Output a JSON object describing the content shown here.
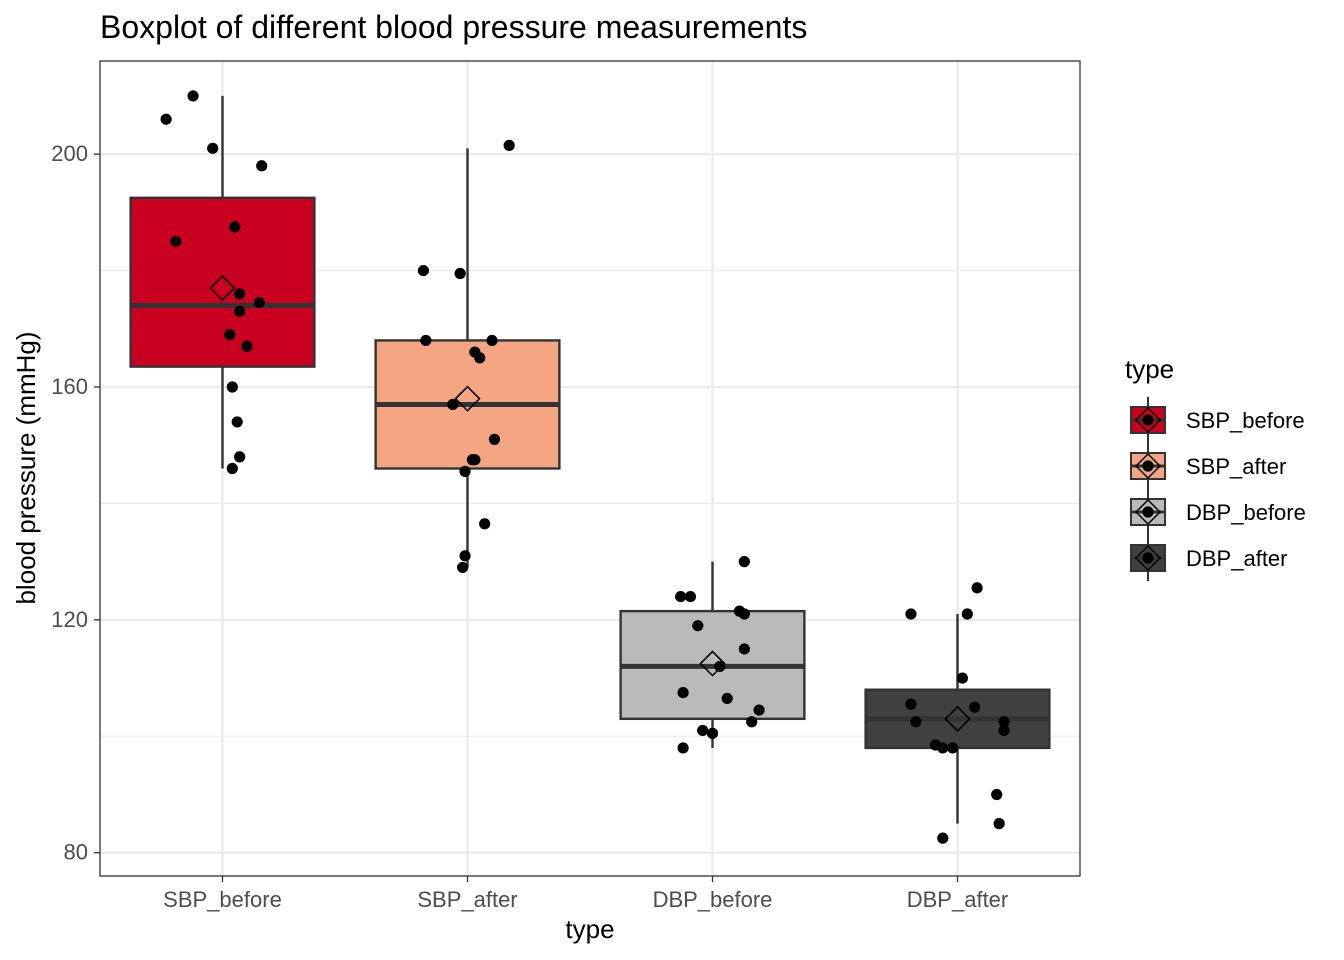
{
  "chart_data": {
    "type": "boxplot",
    "title": "Boxplot of different blood pressure measurements",
    "xlabel": "type",
    "ylabel": "blood pressure (mmHg)",
    "ylim": [
      76,
      216
    ],
    "y_ticks": [
      80,
      120,
      160,
      200
    ],
    "grid": true,
    "legend": {
      "title": "type",
      "placement": "right"
    },
    "categories": [
      "SBP_before",
      "SBP_after",
      "DBP_before",
      "DBP_after"
    ],
    "series": [
      {
        "name": "SBP_before",
        "color": "#CA0020",
        "box": {
          "whisker_low": 146,
          "q1": 163.5,
          "median": 174,
          "q3": 192.5,
          "whisker_high": 210,
          "mean": 177
        },
        "points": [
          [
            -0.12,
            210
          ],
          [
            -0.23,
            206
          ],
          [
            -0.04,
            201
          ],
          [
            0.16,
            198
          ],
          [
            0.05,
            187.5
          ],
          [
            -0.19,
            185
          ],
          [
            0.07,
            176
          ],
          [
            0.15,
            174.5
          ],
          [
            0.07,
            173
          ],
          [
            0.03,
            169
          ],
          [
            0.1,
            167
          ],
          [
            0.04,
            160
          ],
          [
            0.06,
            154
          ],
          [
            0.07,
            148
          ],
          [
            0.04,
            146
          ]
        ]
      },
      {
        "name": "SBP_after",
        "color": "#F4A582",
        "box": {
          "whisker_low": 129,
          "q1": 146,
          "median": 157,
          "q3": 168,
          "whisker_high": 201,
          "mean": 158
        },
        "points": [
          [
            0.17,
            201.5
          ],
          [
            -0.18,
            180
          ],
          [
            -0.03,
            179.5
          ],
          [
            -0.17,
            168
          ],
          [
            0.1,
            168
          ],
          [
            0.03,
            166
          ],
          [
            0.05,
            165
          ],
          [
            -0.06,
            157
          ],
          [
            0.11,
            151
          ],
          [
            0.03,
            147.5
          ],
          [
            0.02,
            147.5
          ],
          [
            -0.01,
            145.5
          ],
          [
            0.07,
            136.5
          ],
          [
            -0.01,
            131
          ],
          [
            -0.02,
            129
          ]
        ]
      },
      {
        "name": "DBP_before",
        "color": "#BABABA",
        "box": {
          "whisker_low": 98,
          "q1": 103,
          "median": 112,
          "q3": 121.5,
          "whisker_high": 130,
          "mean": 112.5
        },
        "points": [
          [
            0.13,
            130
          ],
          [
            -0.13,
            124
          ],
          [
            -0.09,
            124
          ],
          [
            0.11,
            121.5
          ],
          [
            0.13,
            121
          ],
          [
            -0.06,
            119
          ],
          [
            0.13,
            115
          ],
          [
            0.03,
            112
          ],
          [
            -0.12,
            107.5
          ],
          [
            0.06,
            106.5
          ],
          [
            0.19,
            104.5
          ],
          [
            0.16,
            102.5
          ],
          [
            -0.04,
            101
          ],
          [
            0.0,
            100.5
          ],
          [
            -0.12,
            98
          ]
        ]
      },
      {
        "name": "DBP_after",
        "color": "#404040",
        "box": {
          "whisker_low": 85,
          "q1": 98,
          "median": 103,
          "q3": 108,
          "whisker_high": 121,
          "mean": 103
        },
        "points": [
          [
            0.08,
            125.5
          ],
          [
            -0.19,
            121
          ],
          [
            0.04,
            121
          ],
          [
            0.02,
            110
          ],
          [
            -0.19,
            105.5
          ],
          [
            0.07,
            105
          ],
          [
            -0.17,
            102.5
          ],
          [
            0.19,
            102.5
          ],
          [
            0.19,
            101
          ],
          [
            -0.09,
            98.5
          ],
          [
            -0.06,
            98
          ],
          [
            -0.02,
            98
          ],
          [
            0.16,
            90
          ],
          [
            0.17,
            85
          ],
          [
            -0.06,
            82.5
          ]
        ]
      }
    ]
  }
}
